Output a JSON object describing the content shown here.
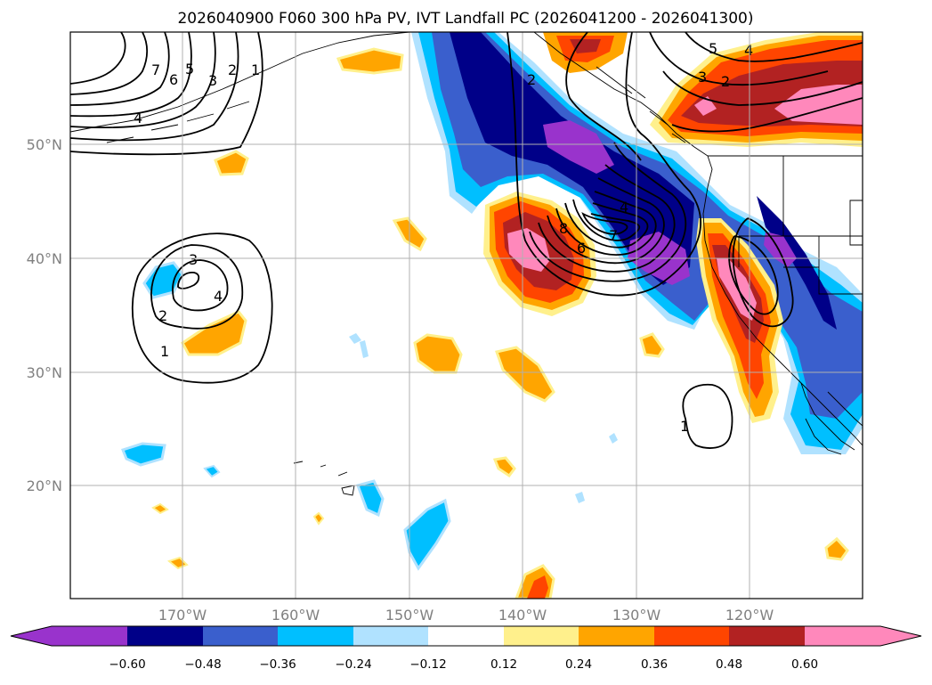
{
  "title": "2026040900 F060 300 hPa PV, IVT Landfall PC (2026041200 - 2026041300)",
  "lat_labels": [
    "50°N",
    "40°N",
    "30°N",
    "20°N"
  ],
  "lon_labels": [
    "170°W",
    "160°W",
    "150°W",
    "140°W",
    "130°W",
    "120°W"
  ],
  "colorbar": {
    "ticks": [
      "−0.60",
      "−0.48",
      "−0.36",
      "−0.24",
      "−0.12",
      "0.12",
      "0.24",
      "0.36",
      "0.48",
      "0.60"
    ],
    "colors": [
      "#9933cc",
      "#000088",
      "#3a5fcd",
      "#00bfff",
      "#b0e2ff",
      "#ffffff",
      "#fff08c",
      "#ffa500",
      "#ff4500",
      "#b22222",
      "#ff88bb"
    ]
  },
  "contour_labels": {
    "nw": [
      "7",
      "6",
      "5",
      "3",
      "2",
      "1",
      "4"
    ],
    "low": [
      "3",
      "4",
      "2",
      "1"
    ],
    "trough": [
      "8",
      "6",
      "7",
      "4"
    ],
    "north": [
      "2",
      "5",
      "4",
      "3",
      "2"
    ],
    "east": [
      "1"
    ]
  }
}
